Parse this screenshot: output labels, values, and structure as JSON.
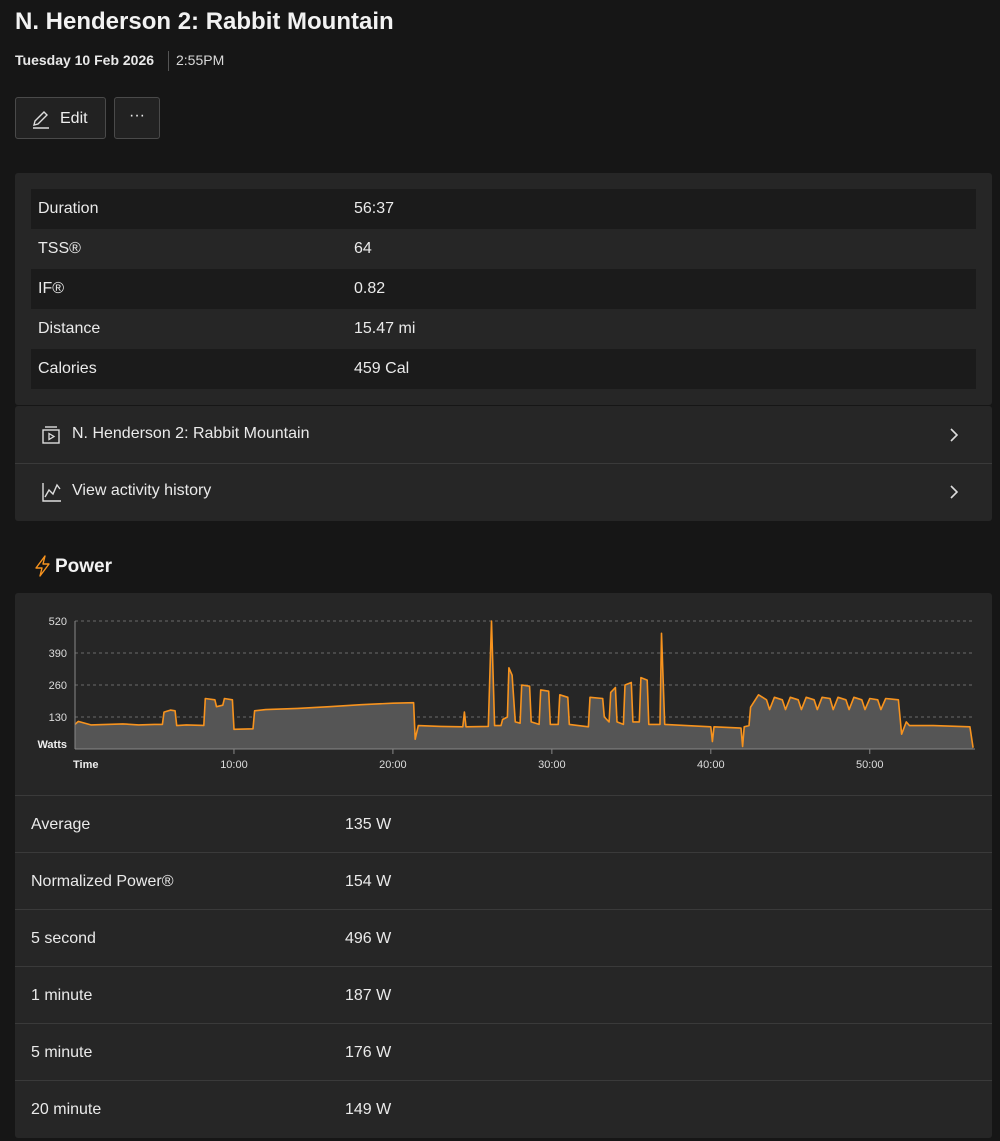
{
  "header": {
    "title": "N. Henderson 2: Rabbit Mountain",
    "date": "Tuesday 10 Feb 2026",
    "time": "2:55PM"
  },
  "actions": {
    "edit": "Edit",
    "more": "···"
  },
  "summary": {
    "rows": [
      [
        "Duration",
        "56:37"
      ],
      [
        "TSS®",
        "64"
      ],
      [
        "IF®",
        "0.82"
      ],
      [
        "Distance",
        "15.47 mi"
      ],
      [
        "Calories",
        "459 Cal"
      ]
    ]
  },
  "links": [
    "N. Henderson 2: Rabbit Mountain",
    "View activity history"
  ],
  "power": {
    "title": "Power",
    "stats": [
      [
        "Average",
        "135 W"
      ],
      [
        "Normalized Power®",
        "154 W"
      ],
      [
        "5 second",
        "496 W"
      ],
      [
        "1 minute",
        "187 W"
      ],
      [
        "5 minute",
        "176 W"
      ],
      [
        "20 minute",
        "149 W"
      ]
    ]
  },
  "chart_data": {
    "type": "line",
    "y_label": "Watts",
    "x_label": "Time",
    "xlim": [
      0,
      56.62
    ],
    "ylim": [
      0,
      520
    ],
    "xticks": [
      {
        "value": 10,
        "label": "10:00"
      },
      {
        "value": 20,
        "label": "20:00"
      },
      {
        "value": 30,
        "label": "30:00"
      },
      {
        "value": 40,
        "label": "40:00"
      },
      {
        "value": 50,
        "label": "50:00"
      }
    ],
    "yticks": [
      130,
      260,
      390,
      520
    ],
    "grid": true,
    "x": [
      0,
      0.2,
      1,
      2,
      3,
      4,
      5,
      5.5,
      5.6,
      6,
      6.3,
      6.4,
      7,
      8.1,
      8.2,
      8.8,
      8.9,
      9.3,
      9.4,
      9.9,
      10,
      11.2,
      11.3,
      12,
      14,
      16,
      18,
      20,
      21.3,
      21.4,
      21.6,
      23,
      24.4,
      24.5,
      24.6,
      26,
      26.2,
      26.4,
      26.8,
      26.9,
      27.2,
      27.3,
      27.5,
      27.7,
      28,
      28.1,
      28.6,
      28.7,
      29.2,
      29.3,
      29.8,
      29.9,
      30.4,
      30.5,
      31,
      31.1,
      32.3,
      32.4,
      33.2,
      33.3,
      33.6,
      33.7,
      34,
      34.1,
      34.5,
      34.6,
      35,
      35.1,
      35.5,
      35.6,
      36,
      36.1,
      36.8,
      36.9,
      37.1,
      40,
      40.1,
      40.2,
      41.9,
      42,
      42.1,
      42.4,
      42.5,
      43,
      43.5,
      43.7,
      44,
      44.5,
      44.7,
      45,
      45.5,
      45.7,
      46,
      46.5,
      46.7,
      47,
      47.5,
      47.7,
      48,
      48.5,
      48.7,
      49,
      49.5,
      49.7,
      50,
      50.5,
      50.7,
      51,
      51.8,
      52,
      52.3,
      52.5,
      54,
      56.3,
      56.5
    ],
    "series": [
      {
        "name": "Power",
        "color": "#f7931e",
        "values": [
          100,
          112,
          98,
          100,
          102,
          98,
          100,
          100,
          150,
          158,
          155,
          95,
          98,
          96,
          205,
          200,
          172,
          178,
          205,
          200,
          80,
          82,
          155,
          160,
          165,
          172,
          180,
          186,
          188,
          40,
          95,
          92,
          90,
          150,
          90,
          92,
          520,
          95,
          95,
          120,
          130,
          330,
          300,
          110,
          105,
          260,
          255,
          110,
          100,
          240,
          235,
          100,
          100,
          220,
          210,
          100,
          90,
          210,
          205,
          130,
          110,
          230,
          250,
          110,
          100,
          260,
          270,
          110,
          110,
          290,
          280,
          100,
          100,
          470,
          100,
          90,
          30,
          90,
          85,
          10,
          90,
          95,
          170,
          220,
          200,
          160,
          210,
          200,
          160,
          210,
          200,
          160,
          210,
          200,
          160,
          210,
          205,
          160,
          210,
          200,
          160,
          210,
          200,
          160,
          205,
          200,
          160,
          205,
          200,
          60,
          110,
          95,
          95,
          90,
          5
        ]
      }
    ]
  }
}
